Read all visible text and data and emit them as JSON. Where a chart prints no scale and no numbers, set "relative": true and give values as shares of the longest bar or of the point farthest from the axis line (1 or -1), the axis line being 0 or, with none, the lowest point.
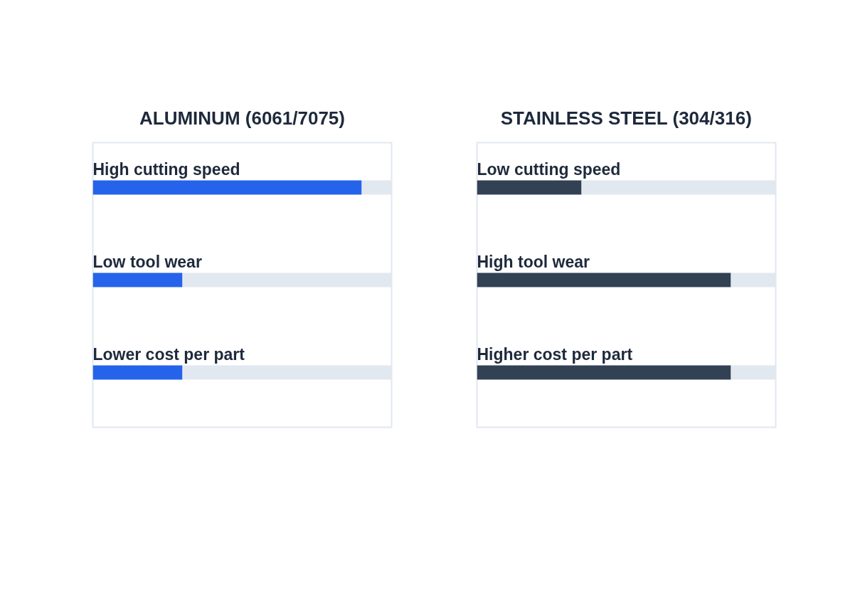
{
  "chart_data": [
    {
      "type": "bar",
      "orientation": "horizontal",
      "stacked": true,
      "relative": true,
      "title": "ALUMINUM (6061/7075)",
      "categories": [
        "High cutting speed",
        "Low tool wear",
        "Lower cost per part"
      ],
      "series": [
        {
          "color": "#2563eb",
          "values": [
            0.9,
            0.3,
            0.3
          ]
        },
        {
          "color": "#e2e8f0",
          "values": [
            0.1,
            0.7,
            0.7
          ]
        }
      ],
      "grid": false
    },
    {
      "type": "bar",
      "orientation": "horizontal",
      "stacked": true,
      "relative": true,
      "title": "STAINLESS STEEL (304/316)",
      "categories": [
        "Low cutting speed",
        "High tool wear",
        "Higher cost per part"
      ],
      "series": [
        {
          "color": "#334155",
          "values": [
            0.35,
            0.85,
            0.85
          ]
        },
        {
          "color": "#e2e8f0",
          "values": [
            0.65,
            0.15,
            0.15
          ]
        }
      ],
      "grid": false
    }
  ]
}
